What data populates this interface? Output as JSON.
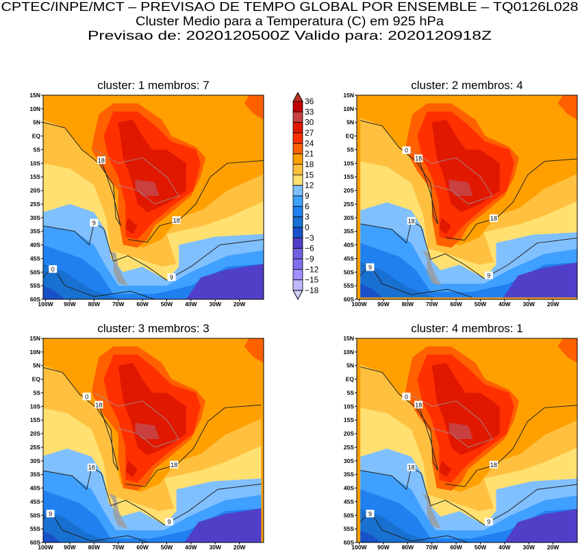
{
  "title": {
    "line1": "CPTEC/INPE/MCT – PREVISAO DE TEMPO GLOBAL POR ENSEMBLE – TQ0126L028",
    "line2": "Cluster Medio para a Temperatura (C) em 925 hPa",
    "line3": "Previsao de: 2020120500Z    Valido para: 2020120918Z"
  },
  "panels": [
    {
      "title": "cluster: 1   membros: 7",
      "contour_labels": [
        "18",
        "18",
        "9",
        "9",
        "0"
      ]
    },
    {
      "title": "cluster: 2   membros: 4",
      "contour_labels": [
        "18",
        "18",
        "18",
        "9",
        "9",
        "0"
      ]
    },
    {
      "title": "cluster: 3   membros: 3",
      "contour_labels": [
        "18",
        "18",
        "18",
        "9",
        "9",
        "0"
      ]
    },
    {
      "title": "cluster: 4   membros: 1",
      "contour_labels": [
        "18",
        "18",
        "18",
        "9",
        "9",
        "0"
      ]
    }
  ],
  "axes": {
    "lat_labels": [
      "15N",
      "10N",
      "5N",
      "EQ",
      "5S",
      "10S",
      "15S",
      "20S",
      "25S",
      "30S",
      "35S",
      "40S",
      "45S",
      "50S",
      "55S",
      "60S"
    ],
    "lon_labels": [
      "100W",
      "90W",
      "80W",
      "70W",
      "60W",
      "50W",
      "40W",
      "30W",
      "20W"
    ]
  },
  "colorbar": {
    "labels": [
      "36",
      "33",
      "30",
      "27",
      "24",
      "21",
      "18",
      "15",
      "12",
      "9",
      "6",
      "3",
      "0",
      "−3",
      "−6",
      "−9",
      "−12",
      "−15",
      "−18"
    ],
    "colors": [
      "#C00000",
      "#C84040",
      "#E01800",
      "#FF3000",
      "#FF6000",
      "#FFA000",
      "#FFC040",
      "#FFE070",
      "#80C0FF",
      "#40A0FF",
      "#2080F0",
      "#1870D0",
      "#1850C8",
      "#5040C8",
      "#7060E0",
      "#8070F0",
      "#A090FF",
      "#C0B8FF"
    ],
    "over_color": "#C03020",
    "under_color": "#D0D0FF"
  }
}
